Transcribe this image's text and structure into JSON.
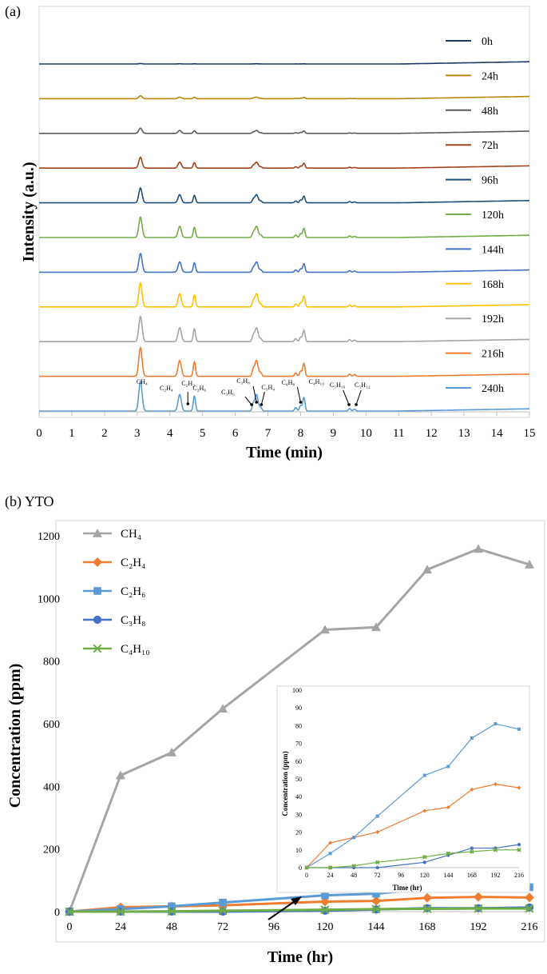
{
  "panel_a_label": "(a)",
  "panel_b_label": "(b) YTO",
  "chart_data": [
    {
      "type": "line",
      "title": "",
      "xlabel": "Time (min)",
      "ylabel": "Intensity (a.u.)",
      "xlim": [
        0,
        15
      ],
      "xticks": [
        "0",
        "1",
        "2",
        "3",
        "4",
        "5",
        "6",
        "7",
        "8",
        "9",
        "10",
        "11",
        "12",
        "13",
        "14",
        "15"
      ],
      "legend_position": "right",
      "series": [
        {
          "name": "0h",
          "color": "#1f3864",
          "scale": 0.02
        },
        {
          "name": "24h",
          "color": "#b8860b",
          "scale": 0.12
        },
        {
          "name": "48h",
          "color": "#595959",
          "scale": 0.22
        },
        {
          "name": "72h",
          "color": "#a0421c",
          "scale": 0.45
        },
        {
          "name": "96h",
          "color": "#1f4e79",
          "scale": 0.62
        },
        {
          "name": "120h",
          "color": "#70ad47",
          "scale": 0.85
        },
        {
          "name": "144h",
          "color": "#4472c4",
          "scale": 0.78
        },
        {
          "name": "168h",
          "color": "#ffc000",
          "scale": 1.0
        },
        {
          "name": "192h",
          "color": "#a5a5a5",
          "scale": 1.05
        },
        {
          "name": "216h",
          "color": "#ed7d31",
          "scale": 1.2
        },
        {
          "name": "240h",
          "color": "#5b9bd5",
          "scale": 1.25
        }
      ],
      "peaks": [
        {
          "rt": 3.1,
          "rel": 1.0
        },
        {
          "rt": 4.3,
          "rel": 0.55
        },
        {
          "rt": 4.75,
          "rel": 0.5
        },
        {
          "rt": 6.55,
          "rel": 0.22
        },
        {
          "rt": 6.65,
          "rel": 0.55
        },
        {
          "rt": 6.78,
          "rel": 0.12
        },
        {
          "rt": 7.85,
          "rel": 0.12
        },
        {
          "rt": 8.0,
          "rel": 0.18
        },
        {
          "rt": 8.1,
          "rel": 0.45
        },
        {
          "rt": 9.5,
          "rel": 0.08
        },
        {
          "rt": 9.65,
          "rel": 0.06
        }
      ],
      "annotations": [
        {
          "text": "CH₄",
          "rt": 3.1
        },
        {
          "text": "C₂H₄",
          "rt": 4.3
        },
        {
          "text": "C₂H₂",
          "rt": 4.55
        },
        {
          "text": "C₂H₆",
          "rt": 4.75
        },
        {
          "text": "C₃H₆",
          "rt": 6.55
        },
        {
          "text": "C₃H₈",
          "rt": 6.65
        },
        {
          "text": "C₃H₄",
          "rt": 6.8
        },
        {
          "text": "C₄H₈",
          "rt": 8.0
        },
        {
          "text": "C₄H₁₀",
          "rt": 8.1
        },
        {
          "text": "C₅H₁₀",
          "rt": 9.5
        },
        {
          "text": "C₅H₁₂",
          "rt": 9.65
        }
      ]
    },
    {
      "type": "line",
      "title": "",
      "xlabel": "Time (hr)",
      "ylabel": "Concentration (ppm)",
      "x": [
        0,
        24,
        48,
        72,
        96,
        120,
        144,
        168,
        192,
        216
      ],
      "xticks": [
        "0",
        "24",
        "48",
        "72",
        "96",
        "120",
        "144",
        "168",
        "192",
        "216"
      ],
      "ylim": [
        0,
        1200
      ],
      "yticks": [
        "0",
        "200",
        "400",
        "600",
        "800",
        "1000",
        "1200"
      ],
      "legend_position": "top-left",
      "series": [
        {
          "name": "CH₄",
          "label_parts": [
            "CH",
            "4",
            ""
          ],
          "marker": "triangle",
          "color": "#a5a5a5",
          "x": [
            0,
            24,
            48,
            72,
            120,
            144,
            168,
            192,
            216
          ],
          "values": [
            0,
            435,
            508,
            648,
            900,
            908,
            1092,
            1158,
            1108
          ]
        },
        {
          "name": "C₂H₄",
          "label_parts": [
            "C",
            "2",
            "H",
            "4"
          ],
          "marker": "diamond",
          "color": "#ed7d31",
          "x": [
            0,
            24,
            48,
            72,
            120,
            144,
            168,
            192,
            216
          ],
          "values": [
            0,
            14,
            17,
            20,
            32,
            34,
            44,
            47,
            45
          ]
        },
        {
          "name": "C₂H₆",
          "label_parts": [
            "C",
            "2",
            "H",
            "6"
          ],
          "marker": "square",
          "color": "#5b9bd5",
          "x": [
            0,
            24,
            48,
            72,
            120,
            144,
            168,
            192,
            216
          ],
          "values": [
            0,
            8,
            17,
            29,
            52,
            57,
            73,
            81,
            78
          ]
        },
        {
          "name": "C₃H₈",
          "label_parts": [
            "C",
            "3",
            "H",
            "8"
          ],
          "marker": "circle",
          "color": "#4472c4",
          "x": [
            0,
            24,
            48,
            72,
            120,
            144,
            168,
            192,
            216
          ],
          "values": [
            0,
            0,
            0,
            0,
            3,
            7,
            11,
            11,
            13
          ]
        },
        {
          "name": "C₄H₁₀",
          "label_parts": [
            "C",
            "4",
            "H",
            "10"
          ],
          "marker": "x",
          "color": "#70ad47",
          "x": [
            0,
            24,
            48,
            72,
            120,
            144,
            168,
            192,
            216
          ],
          "values": [
            0,
            0,
            1,
            3,
            6,
            8,
            9,
            10,
            10
          ]
        }
      ],
      "inset": {
        "xlabel": "Time (hr)",
        "ylabel": "Concentration (ppm)",
        "ylim": [
          0,
          100
        ],
        "yticks": [
          "0",
          "10",
          "20",
          "30",
          "40",
          "50",
          "60",
          "70",
          "80",
          "90",
          "100"
        ],
        "xticks": [
          "0",
          "24",
          "48",
          "72",
          "96",
          "120",
          "144",
          "168",
          "192",
          "216"
        ],
        "series_shown": [
          "C₂H₄",
          "C₂H₆",
          "C₃H₈",
          "C₄H₁₀"
        ]
      }
    }
  ]
}
